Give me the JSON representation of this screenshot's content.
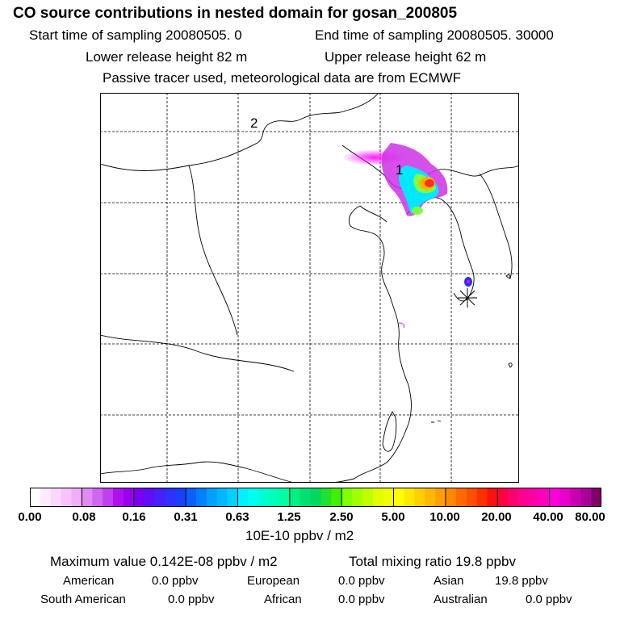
{
  "header": {
    "title": "CO  source contributions in nested domain for gosan_200805",
    "start_time": "Start time of sampling 20080505.     0",
    "end_time": "End time of sampling 20080505. 30000",
    "lower_height": "Lower release height   82 m",
    "upper_height": "Upper release height   62 m",
    "tracer_note": "Passive tracer used, meteorological data are from ECMWF"
  },
  "map": {
    "contour_labels": [
      "1",
      "2"
    ],
    "plume_colors": [
      "#ff00ff",
      "#00ffff",
      "#ffff00",
      "#ff4000"
    ]
  },
  "colorbar": {
    "ticks": [
      "0.00",
      "0.08",
      "0.16",
      "0.31",
      "0.63",
      "1.25",
      "2.50",
      "5.00",
      "10.00",
      "20.00",
      "40.00",
      "80.00"
    ],
    "unit_label": "10E-10 ppbv / m2",
    "segments": [
      [
        "#ffffff",
        "#fdeafe",
        "#fad8fd",
        "#f6c4fb",
        "#f1aef9"
      ],
      [
        "#e08af4",
        "#cf66f0",
        "#c040ee",
        "#b010ee",
        "#9a00ee"
      ],
      [
        "#7a00ee",
        "#5e10f4",
        "#4820f8",
        "#3030ff",
        "#1a40ff"
      ],
      [
        "#0a60ff",
        "#0080ff",
        "#00a0ff",
        "#00b8ff",
        "#00d0ff"
      ],
      [
        "#00f0ff",
        "#00ffee",
        "#00ffd0",
        "#00ffb8",
        "#00ffa0"
      ],
      [
        "#00f080",
        "#00e070",
        "#00d860",
        "#20e030",
        "#40f000"
      ],
      [
        "#80ff00",
        "#a0ff00",
        "#c0ff00",
        "#e0ff00",
        "#f0ff00"
      ],
      [
        "#ffff00",
        "#ffe800",
        "#ffd000",
        "#ffb800",
        "#ffa000"
      ],
      [
        "#ff8800",
        "#ff6a00",
        "#ff5000",
        "#ff3000",
        "#ff1010"
      ],
      [
        "#ff0040",
        "#ff0070",
        "#ff0090",
        "#ff00a8",
        "#ff00c0"
      ],
      [
        "#ff00d8",
        "#e600c8",
        "#c800b0",
        "#a80098",
        "#80006a"
      ]
    ]
  },
  "stats": {
    "max_value": "Maximum value  0.142E-08 ppbv / m2",
    "total_mixing": "Total mixing ratio       19.8 ppbv",
    "regions": [
      {
        "name": "American",
        "value": "0.0 ppbv"
      },
      {
        "name": "European",
        "value": "0.0 ppbv"
      },
      {
        "name": "Asian",
        "value": "19.8 ppbv"
      },
      {
        "name": "South American",
        "value": "0.0 ppbv"
      },
      {
        "name": "African",
        "value": "0.0 ppbv"
      },
      {
        "name": "Australian",
        "value": "0.0 ppbv"
      }
    ]
  }
}
